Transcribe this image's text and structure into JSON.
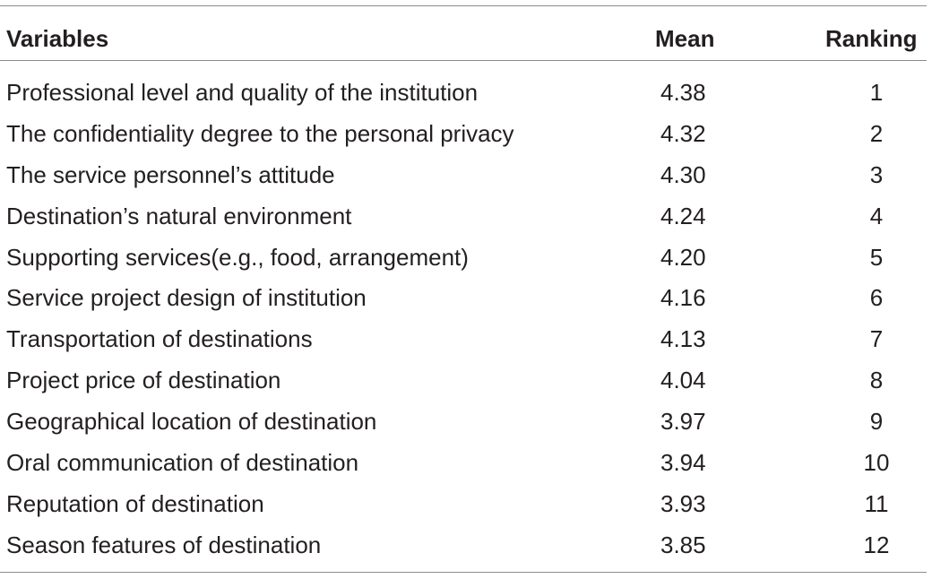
{
  "table": {
    "headers": {
      "variables": "Variables",
      "mean": "Mean",
      "ranking": "Ranking"
    },
    "rows": [
      {
        "variable": "Professional level and quality of the institution",
        "mean": "4.38",
        "ranking": "1"
      },
      {
        "variable": "The confidentiality degree to the personal privacy",
        "mean": "4.32",
        "ranking": "2"
      },
      {
        "variable": "The service personnel’s attitude",
        "mean": "4.30",
        "ranking": "3"
      },
      {
        "variable": "Destination’s natural environment",
        "mean": "4.24",
        "ranking": "4"
      },
      {
        "variable": "Supporting services(e.g., food, arrangement)",
        "mean": "4.20",
        "ranking": "5"
      },
      {
        "variable": "Service project design of institution",
        "mean": "4.16",
        "ranking": "6"
      },
      {
        "variable": "Transportation of destinations",
        "mean": "4.13",
        "ranking": "7"
      },
      {
        "variable": "Project price of destination",
        "mean": "4.04",
        "ranking": "8"
      },
      {
        "variable": "Geographical location of destination",
        "mean": "3.97",
        "ranking": "9"
      },
      {
        "variable": "Oral communication of destination",
        "mean": "3.94",
        "ranking": "10"
      },
      {
        "variable": "Reputation of destination",
        "mean": "3.93",
        "ranking": "11"
      },
      {
        "variable": "Season features of destination",
        "mean": "3.85",
        "ranking": "12"
      }
    ]
  }
}
